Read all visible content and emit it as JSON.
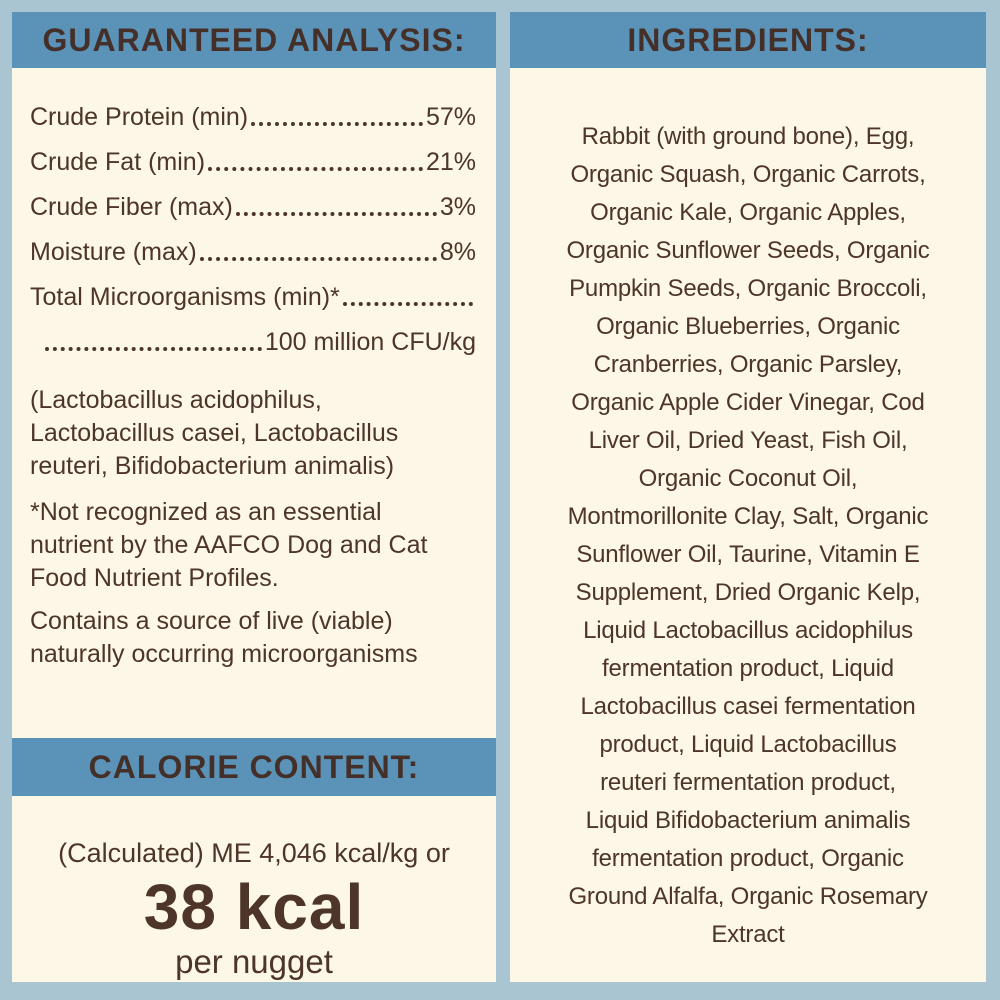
{
  "colors": {
    "page_background": "#a9c5d2",
    "header_band": "#5b93b8",
    "panel_background": "#fcf7e6",
    "text_brown": "#4e3529"
  },
  "guaranteed_analysis": {
    "header": "GUARANTEED ANALYSIS:",
    "rows": [
      {
        "label": "Crude Protein (min)",
        "value": "57%"
      },
      {
        "label": "Crude Fat (min)",
        "value": "21%"
      },
      {
        "label": "Crude Fiber (max)",
        "value": "3%"
      },
      {
        "label": "Moisture (max)",
        "value": "8%"
      },
      {
        "label": "Total Microorganisms (min)*",
        "value": ""
      },
      {
        "label": "",
        "value": "100 million CFU/kg"
      }
    ],
    "species_note_lines": [
      "(Lactobacillus acidophilus,",
      "Lactobacillus casei, Lactobacillus",
      "reuteri, Bifidobacterium animalis)"
    ],
    "aafco_note_lines": [
      "*Not recognized as an essential",
      "nutrient by the AAFCO Dog and Cat",
      "Food Nutrient Profiles."
    ],
    "live_note_lines": [
      "Contains a source of live (viable)",
      "naturally occurring microorganisms"
    ]
  },
  "calorie_content": {
    "header": "CALORIE CONTENT:",
    "calculated_line": "(Calculated) ME 4,046 kcal/kg or",
    "kcal_value": "38 kcal",
    "kcal_unit": "per nugget"
  },
  "ingredients": {
    "header": "INGREDIENTS:",
    "lines": [
      "Rabbit (with ground bone), Egg,",
      "Organic Squash, Organic Carrots,",
      "Organic Kale, Organic Apples,",
      "Organic Sunflower Seeds, Organic",
      "Pumpkin Seeds, Organic Broccoli,",
      "Organic Blueberries, Organic",
      "Cranberries, Organic Parsley,",
      "Organic Apple Cider Vinegar, Cod",
      "Liver Oil, Dried Yeast, Fish Oil,",
      "Organic Coconut Oil,",
      "Montmorillonite Clay, Salt, Organic",
      "Sunflower Oil, Taurine, Vitamin E",
      "Supplement, Dried Organic Kelp,",
      "Liquid Lactobacillus acidophilus",
      "fermentation product, Liquid",
      "Lactobacillus casei fermentation",
      "product, Liquid Lactobacillus",
      "reuteri fermentation product,",
      "Liquid Bifidobacterium animalis",
      "fermentation product, Organic",
      "Ground Alfalfa, Organic Rosemary",
      "Extract"
    ]
  }
}
